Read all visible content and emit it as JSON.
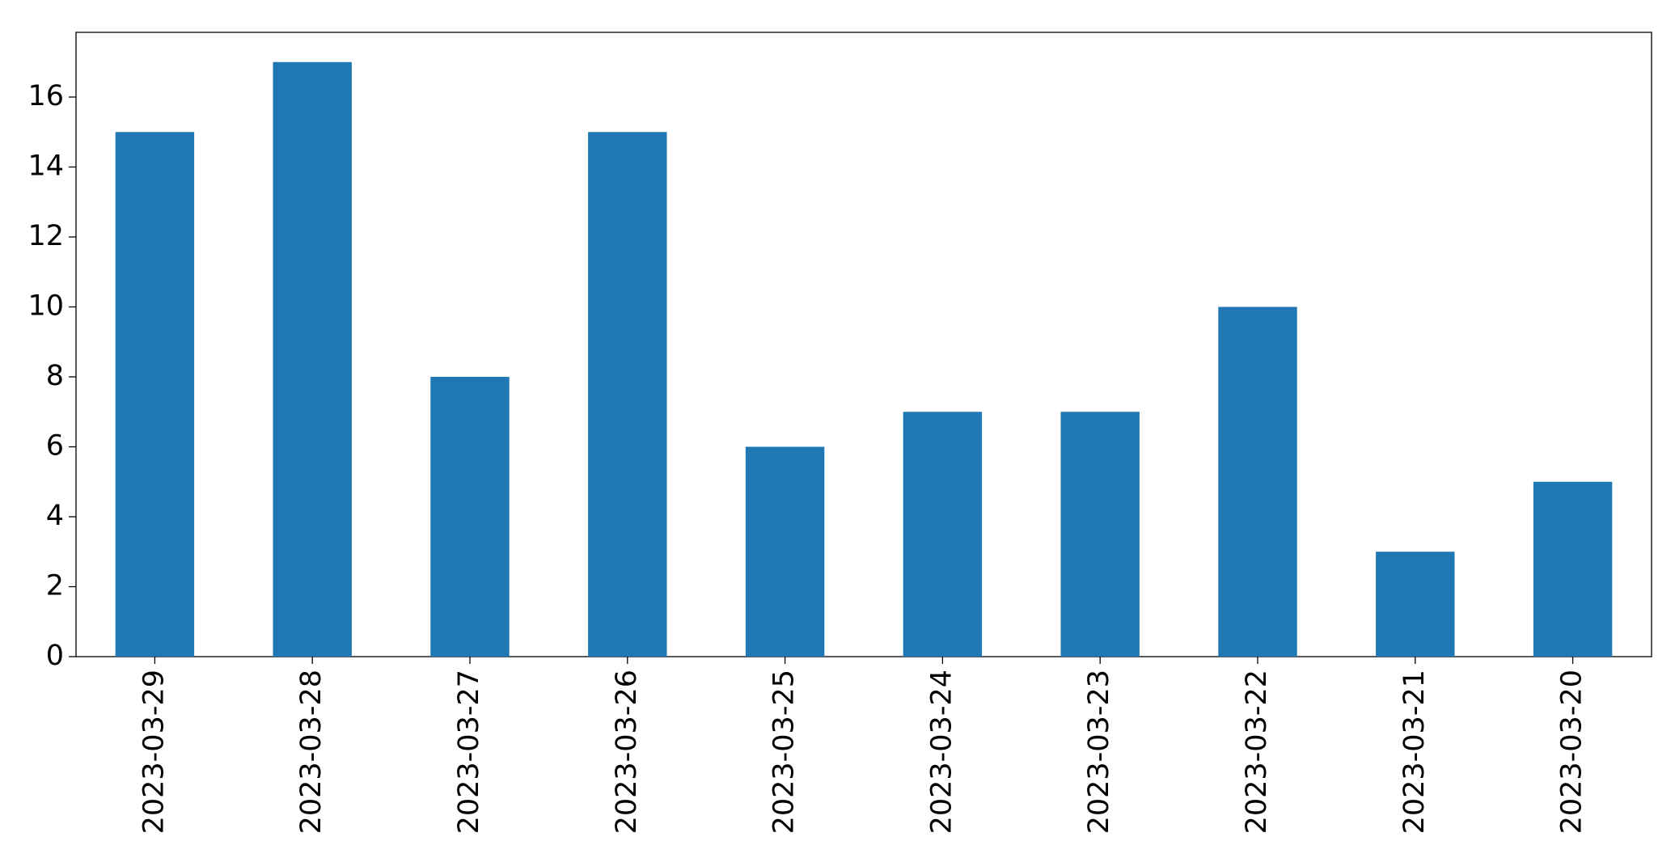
{
  "chart_data": {
    "type": "bar",
    "categories": [
      "2023-03-29",
      "2023-03-28",
      "2023-03-27",
      "2023-03-26",
      "2023-03-25",
      "2023-03-24",
      "2023-03-23",
      "2023-03-22",
      "2023-03-21",
      "2023-03-20"
    ],
    "values": [
      15,
      17,
      8,
      15,
      6,
      7,
      7,
      10,
      3,
      5
    ],
    "color": "#1f77b4",
    "ylim": [
      0,
      17.85
    ],
    "yticks": [
      0,
      2,
      4,
      6,
      8,
      10,
      12,
      14,
      16
    ],
    "grid": false
  }
}
